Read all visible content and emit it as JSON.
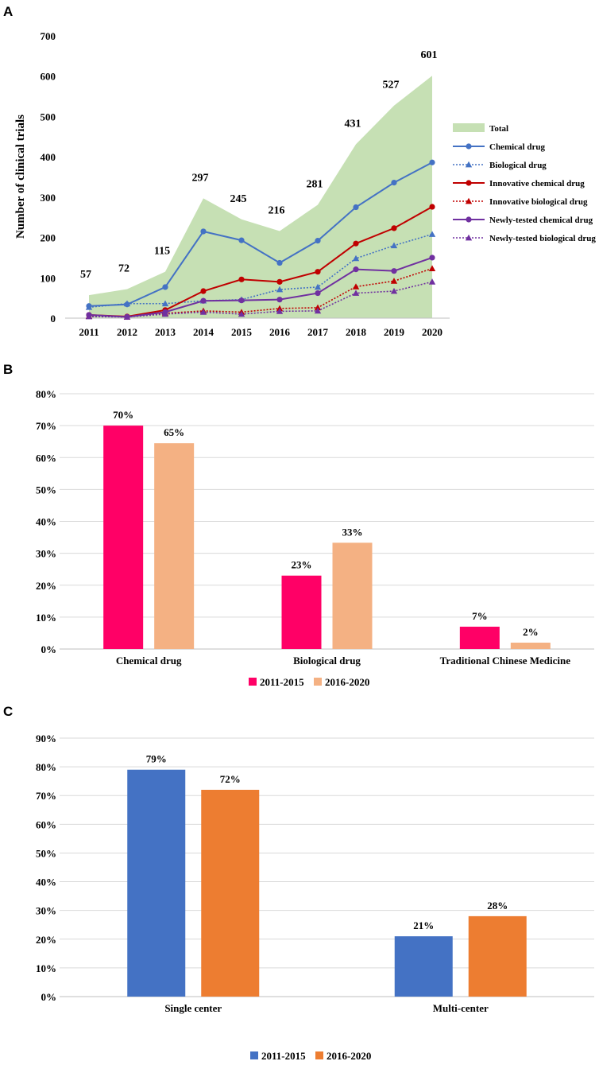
{
  "chart_data": [
    {
      "panel": "A",
      "type": "line",
      "ylabel": "Number of clinical trials",
      "xlabel": "",
      "ylim": [
        0,
        700
      ],
      "yticks": [
        0,
        100,
        200,
        300,
        400,
        500,
        600,
        700
      ],
      "x": [
        "2011",
        "2012",
        "2013",
        "2014",
        "2015",
        "2016",
        "2017",
        "2018",
        "2019",
        "2020"
      ],
      "total": {
        "name": "Total",
        "color": "#c6e0b4",
        "values": [
          57,
          72,
          115,
          297,
          245,
          216,
          281,
          431,
          527,
          601
        ]
      },
      "series": [
        {
          "name": "Chemical drug",
          "color": "#4472c4",
          "dash": false,
          "marker": "circle",
          "values": [
            30,
            34,
            77,
            215,
            193,
            137,
            192,
            275,
            336,
            386
          ]
        },
        {
          "name": "Biological drug",
          "color": "#4472c4",
          "dash": true,
          "marker": "triangle",
          "values": [
            27,
            36,
            36,
            43,
            46,
            71,
            77,
            148,
            180,
            208
          ]
        },
        {
          "name": "Innovative chemical drug",
          "color": "#c00000",
          "dash": false,
          "marker": "circle",
          "values": [
            8,
            4,
            20,
            67,
            96,
            90,
            115,
            185,
            223,
            276
          ]
        },
        {
          "name": "Innovative biological drug",
          "color": "#c00000",
          "dash": true,
          "marker": "triangle",
          "values": [
            5,
            3,
            12,
            18,
            15,
            24,
            26,
            78,
            92,
            123
          ]
        },
        {
          "name": "Newly-tested chemical drug",
          "color": "#7030a0",
          "dash": false,
          "marker": "circle",
          "values": [
            8,
            3,
            15,
            43,
            44,
            46,
            62,
            121,
            117,
            150
          ]
        },
        {
          "name": "Newly-tested biological drug",
          "color": "#7030a0",
          "dash": true,
          "marker": "triangle",
          "values": [
            4,
            3,
            10,
            15,
            10,
            17,
            18,
            62,
            67,
            90
          ]
        }
      ],
      "legend_position": "right"
    },
    {
      "panel": "B",
      "type": "bar",
      "categories": [
        "Chemical drug",
        "Biological drug",
        "Traditional Chinese Medicine"
      ],
      "ylim": [
        0,
        80
      ],
      "yticks": [
        "0%",
        "10%",
        "20%",
        "30%",
        "40%",
        "50%",
        "60%",
        "70%",
        "80%"
      ],
      "series": [
        {
          "name": "2011-2015",
          "color": "#ff0066",
          "values": [
            70,
            23,
            7
          ],
          "labels": [
            "70%",
            "23%",
            "7%"
          ]
        },
        {
          "name": "2016-2020",
          "color": "#f4b183",
          "values": [
            64.5,
            33.3,
            2
          ],
          "labels": [
            "65%",
            "33%",
            "2%"
          ]
        }
      ],
      "legend_position": "bottom"
    },
    {
      "panel": "C",
      "type": "bar",
      "categories": [
        "Single center",
        "Multi-center"
      ],
      "ylim": [
        0,
        90
      ],
      "yticks": [
        "0%",
        "10%",
        "20%",
        "30%",
        "40%",
        "50%",
        "60%",
        "70%",
        "80%",
        "90%"
      ],
      "series": [
        {
          "name": "2011-2015",
          "color": "#4472c4",
          "values": [
            79,
            21
          ],
          "labels": [
            "79%",
            "21%"
          ]
        },
        {
          "name": "2016-2020",
          "color": "#ed7d31",
          "values": [
            72,
            28
          ],
          "labels": [
            "72%",
            "28%"
          ]
        }
      ],
      "legend_position": "bottom"
    }
  ],
  "panel_labels": [
    "A",
    "B",
    "C"
  ]
}
